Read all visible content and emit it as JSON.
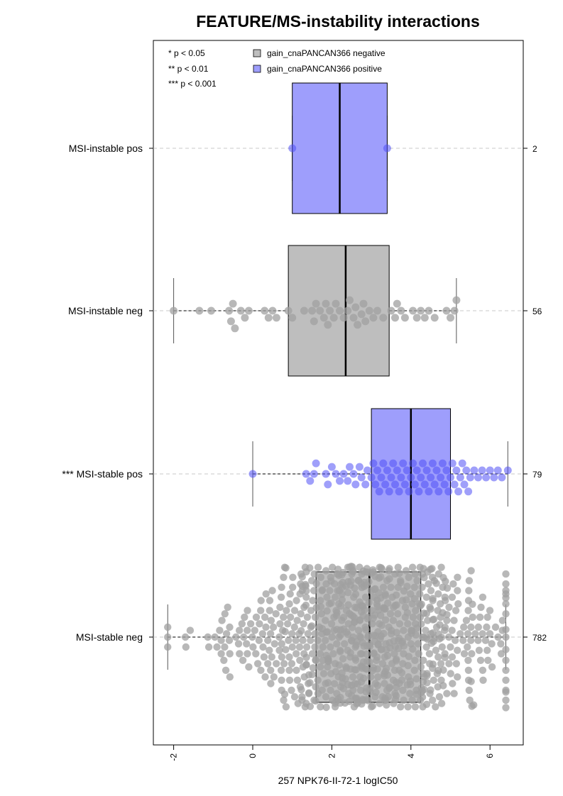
{
  "chart_data": {
    "type": "box",
    "title": "FEATURE/MS-instability interactions",
    "xlabel": "257 NPK76-II-72-1 logIC50",
    "xlim": [
      -2.6,
      6.8
    ],
    "xticks": [
      -2,
      0,
      2,
      4,
      6
    ],
    "xtick_labels": [
      "-2",
      "0",
      "2",
      "4",
      "6"
    ],
    "orientation": "horizontal",
    "significance_legend": [
      "* p < 0.05",
      "** p < 0.01",
      "*** p < 0.001"
    ],
    "legend": [
      {
        "label": "gain_cnaPANCAN366 negative",
        "color": "#bebebe"
      },
      {
        "label": "gain_cnaPANCAN366 positive",
        "color": "#9e9efc"
      }
    ],
    "groups": [
      {
        "label": "MSI-instable pos",
        "count": "2",
        "feature": "positive",
        "box": {
          "whisker_low": 1.0,
          "q1": 1.0,
          "median": 2.2,
          "q3": 3.4,
          "whisker_high": 3.4
        },
        "points": [
          1.0,
          3.4
        ]
      },
      {
        "label": "MSI-instable neg",
        "count": "56",
        "feature": "negative",
        "box": {
          "whisker_low": -2.0,
          "q1": 0.9,
          "median": 2.35,
          "q3": 3.45,
          "whisker_high": 5.15
        },
        "points": [
          -2.0,
          -1.35,
          -1.05,
          -0.6,
          -0.55,
          -0.5,
          -0.45,
          -0.3,
          -0.2,
          -0.1,
          0.3,
          0.4,
          0.5,
          0.6,
          0.9,
          1.0,
          1.3,
          1.5,
          1.55,
          1.6,
          1.7,
          1.8,
          1.85,
          1.9,
          1.95,
          2.05,
          2.1,
          2.2,
          2.3,
          2.4,
          2.45,
          2.55,
          2.6,
          2.65,
          2.75,
          2.8,
          2.85,
          2.95,
          3.05,
          3.15,
          3.3,
          3.5,
          3.6,
          3.65,
          3.75,
          3.85,
          4.05,
          4.15,
          4.25,
          4.35,
          4.45,
          4.6,
          4.9,
          5.0,
          5.1,
          5.15
        ]
      },
      {
        "label": "*** MSI-stable pos",
        "count": "79",
        "feature": "positive",
        "box": {
          "whisker_low": 0.0,
          "q1": 3.0,
          "median": 4.0,
          "q3": 5.0,
          "whisker_high": 6.45
        },
        "points": [
          0.0,
          1.35,
          1.45,
          1.55,
          1.6,
          1.85,
          1.9,
          2.0,
          2.1,
          2.2,
          2.3,
          2.4,
          2.45,
          2.55,
          2.6,
          2.7,
          2.75,
          2.85,
          2.9,
          3.0,
          3.05,
          3.1,
          3.15,
          3.2,
          3.25,
          3.3,
          3.35,
          3.4,
          3.45,
          3.5,
          3.55,
          3.6,
          3.65,
          3.7,
          3.75,
          3.8,
          3.85,
          3.9,
          3.95,
          4.0,
          4.05,
          4.1,
          4.15,
          4.2,
          4.25,
          4.3,
          4.35,
          4.4,
          4.45,
          4.5,
          4.55,
          4.6,
          4.65,
          4.7,
          4.75,
          4.8,
          4.85,
          4.9,
          4.95,
          5.0,
          5.05,
          5.1,
          5.15,
          5.2,
          5.25,
          5.3,
          5.35,
          5.4,
          5.45,
          5.5,
          5.6,
          5.7,
          5.8,
          5.9,
          6.0,
          6.1,
          6.2,
          6.3,
          6.45
        ]
      },
      {
        "label": "MSI-stable neg",
        "count": "782",
        "feature": "negative",
        "box": {
          "whisker_low": -2.15,
          "q1": 1.6,
          "median": 2.95,
          "q3": 4.25,
          "whisker_high": 6.4
        },
        "distribution": "normal",
        "mean": 2.9,
        "sd": 1.75,
        "n": 782
      }
    ]
  }
}
